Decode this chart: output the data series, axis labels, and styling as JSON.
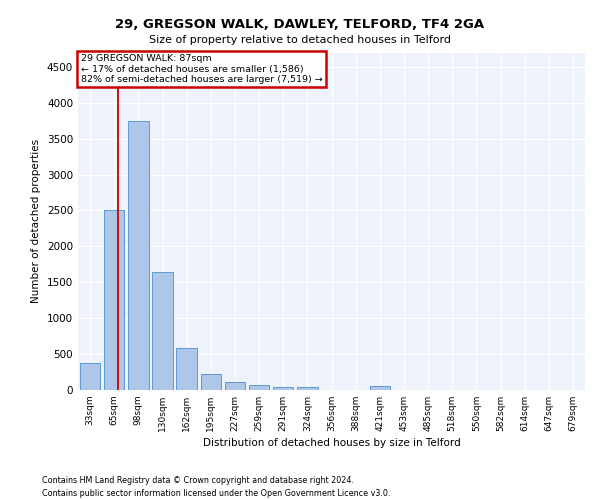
{
  "title": "29, GREGSON WALK, DAWLEY, TELFORD, TF4 2GA",
  "subtitle": "Size of property relative to detached houses in Telford",
  "xlabel": "Distribution of detached houses by size in Telford",
  "ylabel": "Number of detached properties",
  "categories": [
    "33sqm",
    "65sqm",
    "98sqm",
    "130sqm",
    "162sqm",
    "195sqm",
    "227sqm",
    "259sqm",
    "291sqm",
    "324sqm",
    "356sqm",
    "388sqm",
    "421sqm",
    "453sqm",
    "485sqm",
    "518sqm",
    "550sqm",
    "582sqm",
    "614sqm",
    "647sqm",
    "679sqm"
  ],
  "values": [
    370,
    2500,
    3750,
    1640,
    590,
    225,
    110,
    65,
    45,
    40,
    0,
    0,
    55,
    0,
    0,
    0,
    0,
    0,
    0,
    0,
    0
  ],
  "bar_color": "#aec6e8",
  "bar_edge_color": "#5b9bd5",
  "annotation_line1": "29 GREGSON WALK: 87sqm",
  "annotation_line2": "← 17% of detached houses are smaller (1,586)",
  "annotation_line3": "82% of semi-detached houses are larger (7,519) →",
  "vline_color": "#cc0000",
  "annotation_box_color": "#cc0000",
  "vline_x_interp": 0.667,
  "ylim": [
    0,
    4700
  ],
  "yticks": [
    0,
    500,
    1000,
    1500,
    2000,
    2500,
    3000,
    3500,
    4000,
    4500
  ],
  "bg_color": "#eef2fa",
  "footer1": "Contains HM Land Registry data © Crown copyright and database right 2024.",
  "footer2": "Contains public sector information licensed under the Open Government Licence v3.0."
}
